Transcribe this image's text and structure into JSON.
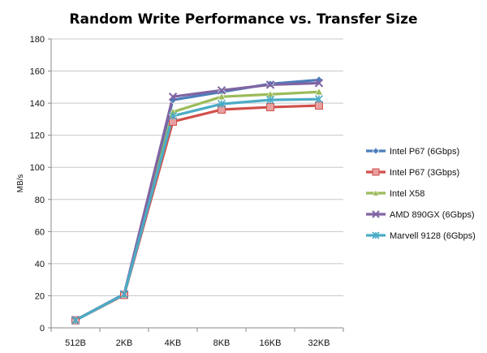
{
  "chart_data": {
    "type": "line",
    "title": "Random Write Performance vs. Transfer Size",
    "xlabel": "",
    "ylabel": "MB/s",
    "categories": [
      "512B",
      "2KB",
      "4KB",
      "8KB",
      "16KB",
      "32KB"
    ],
    "ylim": [
      0,
      180
    ],
    "yticks": [
      0,
      20,
      40,
      60,
      80,
      100,
      120,
      140,
      160,
      180
    ],
    "grid": "horizontal",
    "legend_position": "right",
    "series": [
      {
        "name": "Intel P67 (6Gbps)",
        "color": "#4a7ebb",
        "marker": "diamond",
        "values": [
          4.8,
          21.0,
          142.0,
          147.0,
          152.0,
          154.5
        ]
      },
      {
        "name": "Intel P67 (3Gbps)",
        "color": "#d0504a",
        "marker": "square",
        "values": [
          4.7,
          20.5,
          128.5,
          136.0,
          137.5,
          138.5
        ]
      },
      {
        "name": "Intel X58",
        "color": "#9bbb59",
        "marker": "triangle",
        "values": [
          4.8,
          20.8,
          134.5,
          144.0,
          145.5,
          147.0
        ]
      },
      {
        "name": "AMD 890GX (6Gbps)",
        "color": "#8064a2",
        "marker": "x",
        "values": [
          4.8,
          21.0,
          144.0,
          148.0,
          151.5,
          152.5
        ]
      },
      {
        "name": "Marvell 9128 (6Gbps)",
        "color": "#4bacc6",
        "marker": "star",
        "values": [
          4.7,
          20.9,
          132.0,
          139.5,
          142.0,
          142.5
        ]
      }
    ]
  }
}
